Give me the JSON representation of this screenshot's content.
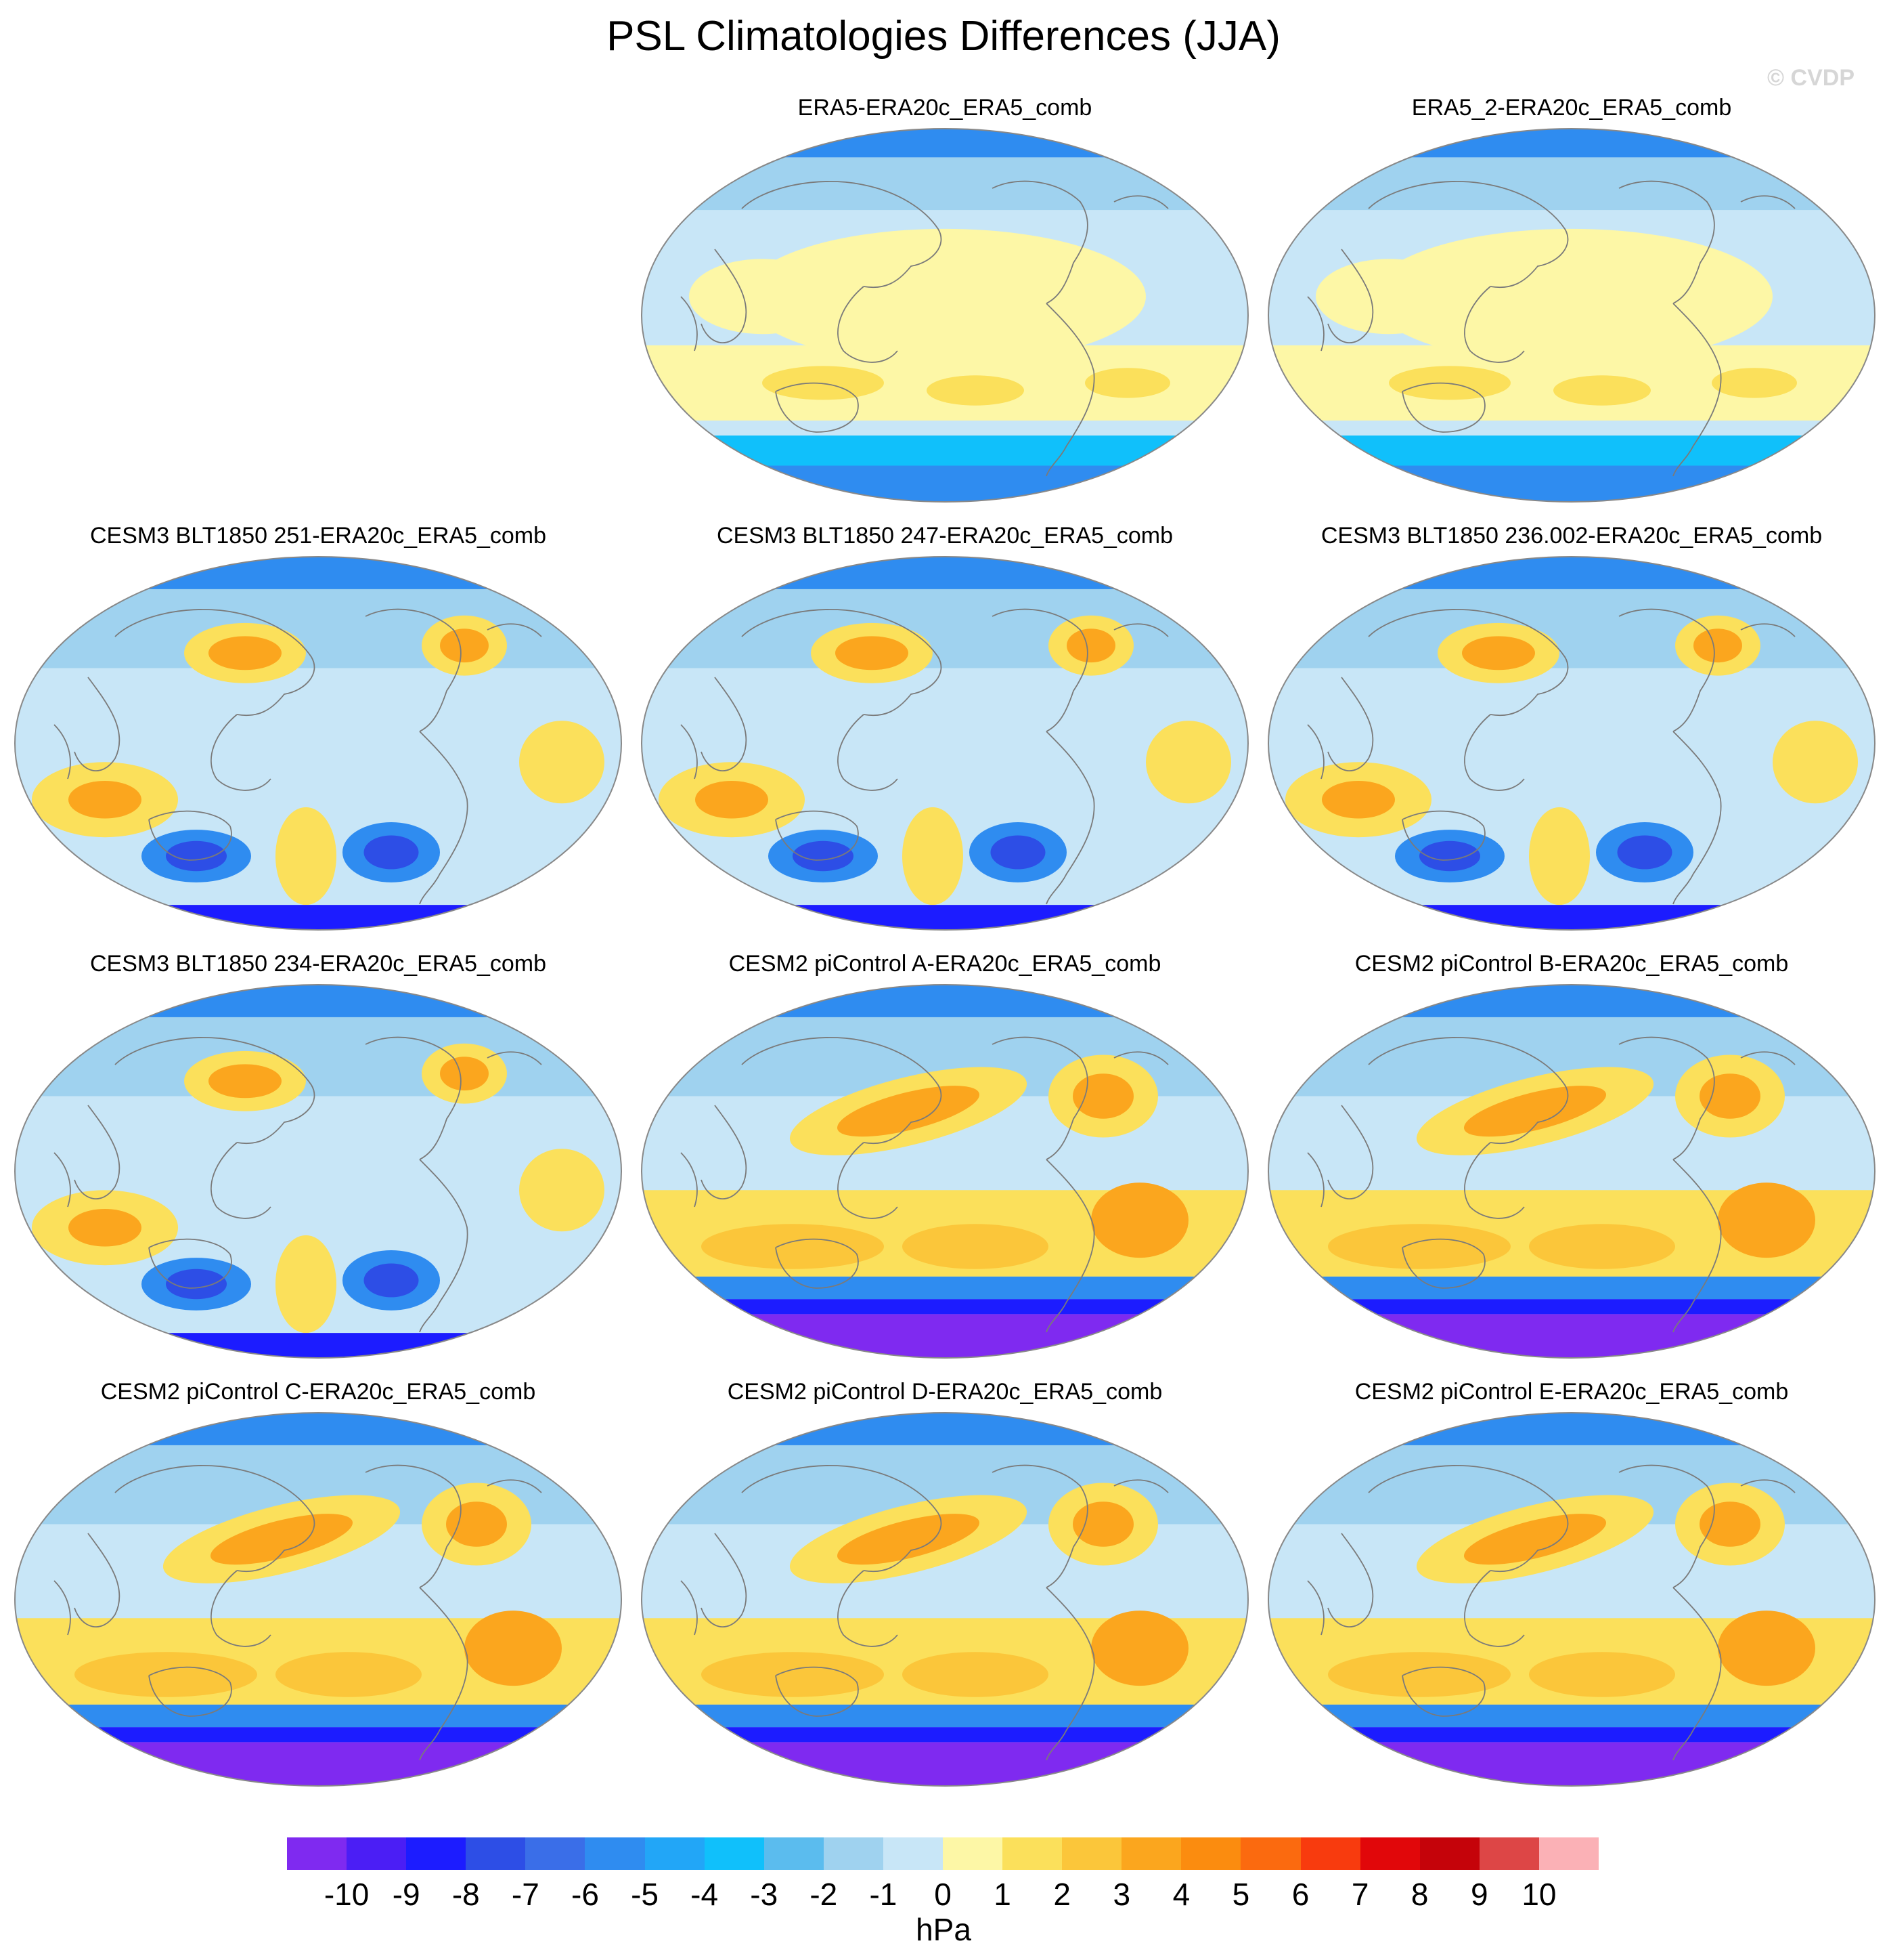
{
  "title": "PSL Climatologies Differences (JJA)",
  "watermark": "© CVDP",
  "panels": [
    {
      "label": "ERA5-ERA20c_ERA5_comb",
      "style": "reanalysis"
    },
    {
      "label": "ERA5_2-ERA20c_ERA5_comb",
      "style": "reanalysis"
    },
    {
      "label": "CESM3 BLT1850 251-ERA20c_ERA5_comb",
      "style": "cesm3"
    },
    {
      "label": "CESM3 BLT1850 247-ERA20c_ERA5_comb",
      "style": "cesm3"
    },
    {
      "label": "CESM3 BLT1850 236.002-ERA20c_ERA5_comb",
      "style": "cesm3"
    },
    {
      "label": "CESM3 BLT1850 234-ERA20c_ERA5_comb",
      "style": "cesm3"
    },
    {
      "label": "CESM2 piControl A-ERA20c_ERA5_comb",
      "style": "cesm2"
    },
    {
      "label": "CESM2 piControl B-ERA20c_ERA5_comb",
      "style": "cesm2"
    },
    {
      "label": "CESM2 piControl C-ERA20c_ERA5_comb",
      "style": "cesm2"
    },
    {
      "label": "CESM2 piControl D-ERA20c_ERA5_comb",
      "style": "cesm2"
    },
    {
      "label": "CESM2 piControl E-ERA20c_ERA5_comb",
      "style": "cesm2"
    }
  ],
  "colorbar": {
    "unit": "hPa",
    "tick_labels": [
      "-10",
      "-9",
      "-8",
      "-7",
      "-6",
      "-5",
      "-4",
      "-3",
      "-2",
      "-1",
      "0",
      "1",
      "2",
      "3",
      "4",
      "5",
      "6",
      "7",
      "8",
      "9",
      "10"
    ],
    "colors": [
      "#7f2af0",
      "#4b1ef5",
      "#1c1cff",
      "#2d4ee6",
      "#3a6ee8",
      "#2f8cf0",
      "#22a6f7",
      "#10c0fb",
      "#5bbcee",
      "#9fd2ef",
      "#c8e6f7",
      "#fdf7a6",
      "#fbe05b",
      "#fbc63a",
      "#fba61e",
      "#fb8c0f",
      "#fb6a0f",
      "#f83b0e",
      "#e1070a",
      "#c5030a",
      "#dd4646",
      "#fbb1b6"
    ]
  }
}
